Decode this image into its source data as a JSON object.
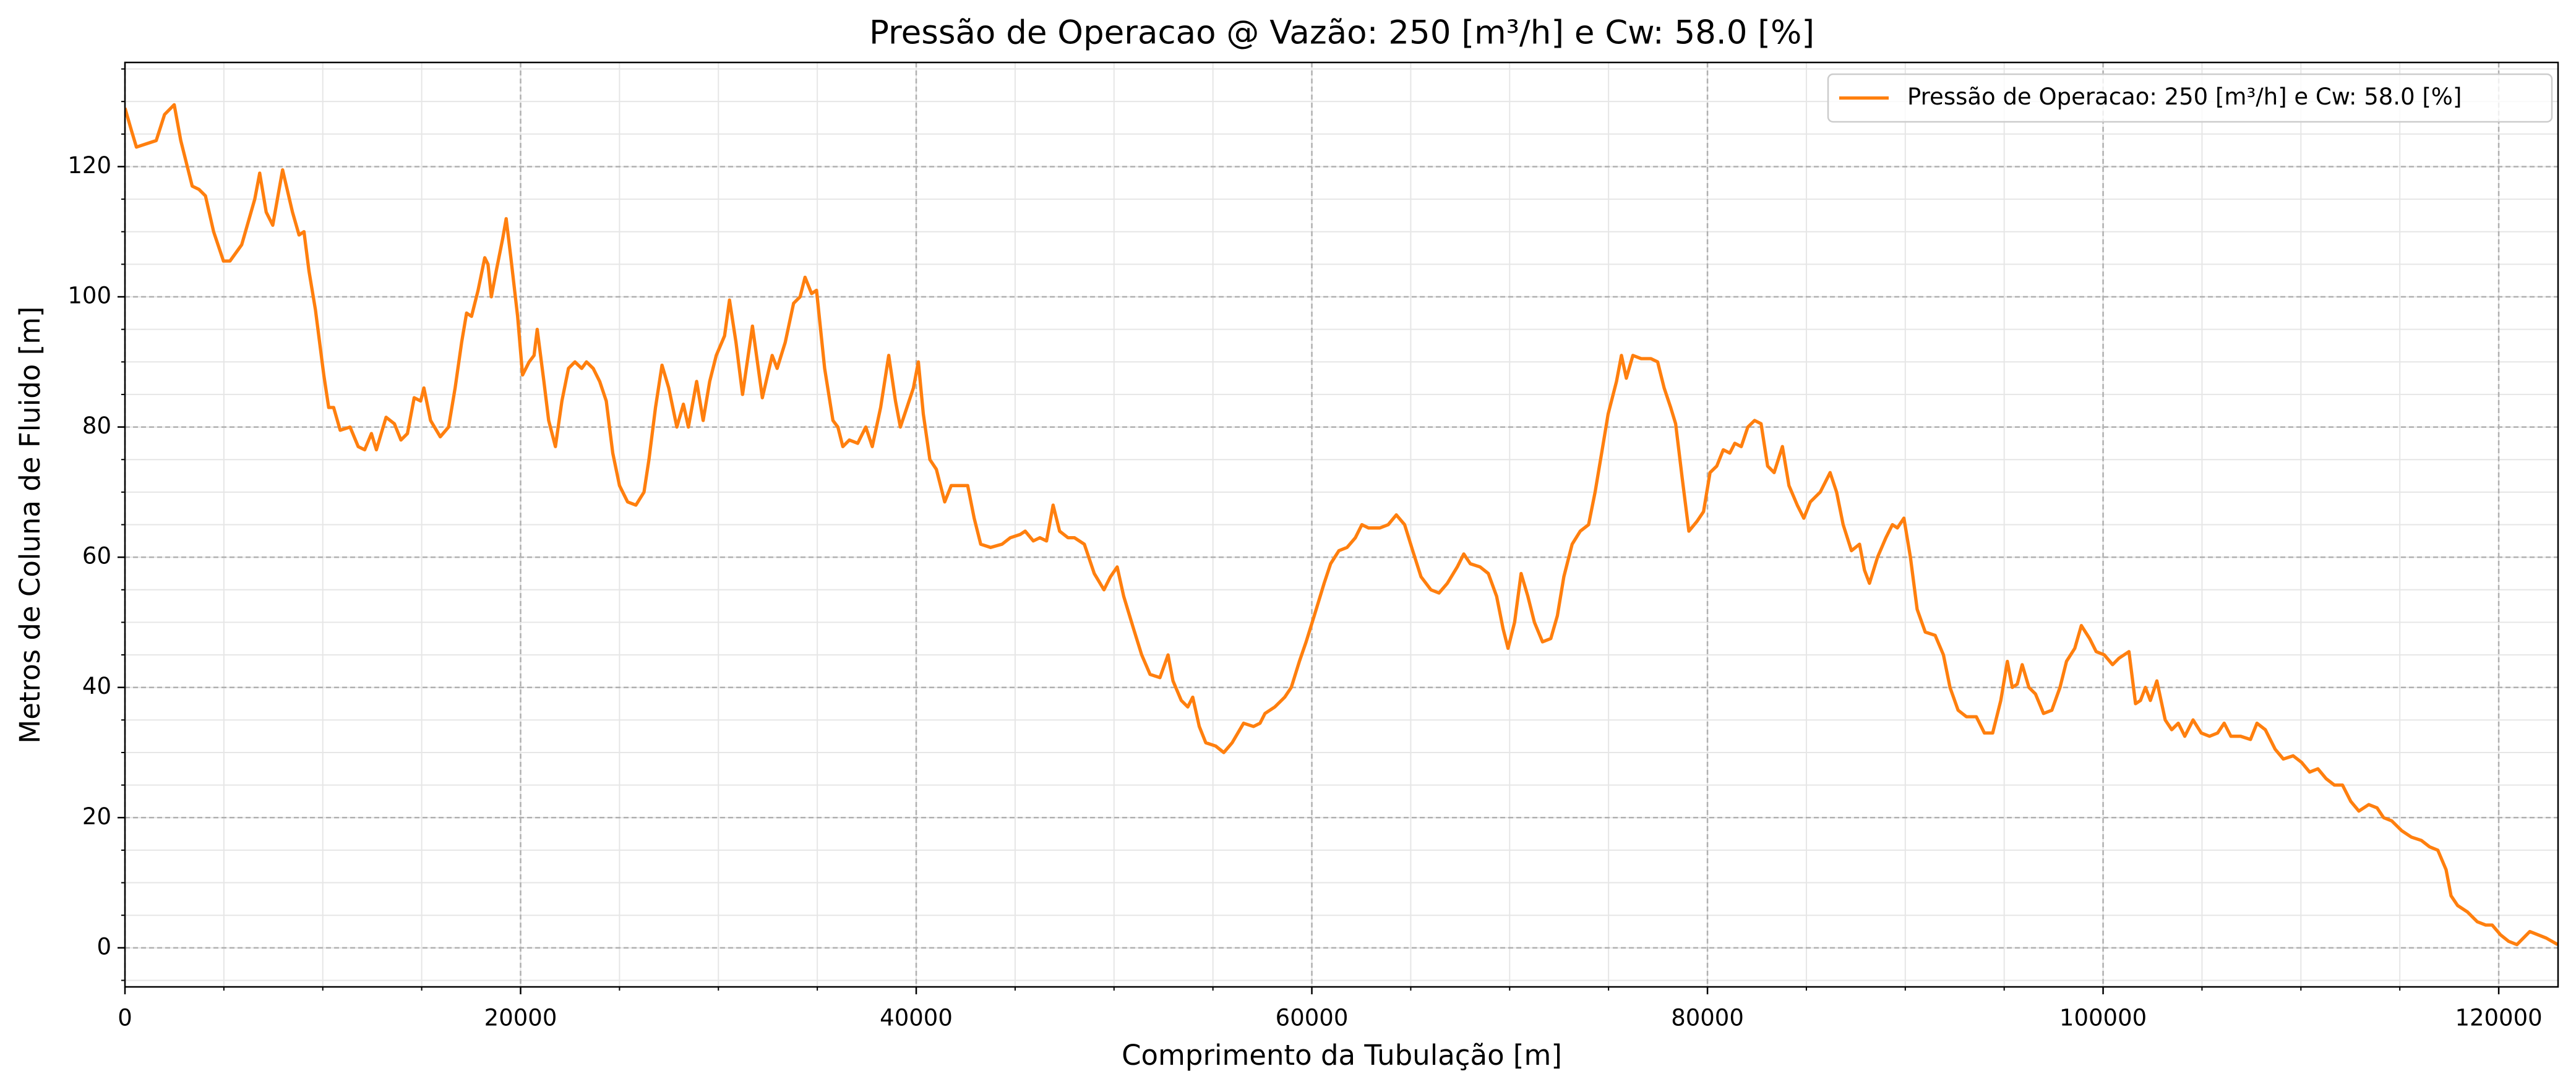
{
  "chart_data": {
    "type": "line",
    "title": "Pressão de Operacao @ Vazão: 250 [m³/h] e Cw: 58.0 [%]",
    "x_label": "Comprimento da Tubulação [m]",
    "y_label": "Metros de Coluna de Fluido [m]",
    "xlim": [
      0,
      123000
    ],
    "ylim": [
      -6,
      136
    ],
    "xticks": [
      0,
      20000,
      40000,
      60000,
      80000,
      100000,
      120000
    ],
    "yticks": [
      0,
      20,
      40,
      60,
      80,
      100,
      120
    ],
    "grid": true,
    "legend": "upper right",
    "x": [
      0,
      330,
      580,
      1580,
      2000,
      2490,
      2820,
      3400,
      3740,
      4070,
      4480,
      4980,
      5310,
      5900,
      6560,
      6810,
      7140,
      7470,
      7970,
      8470,
      8800,
      9050,
      9300,
      9630,
      10050,
      10300,
      10550,
      10880,
      11380,
      11790,
      12120,
      12460,
      12710,
      13200,
      13620,
      13950,
      14280,
      14620,
      14950,
      15110,
      15450,
      15940,
      16360,
      16690,
      17020,
      17270,
      17520,
      17850,
      18190,
      18350,
      18520,
      18770,
      19100,
      19270,
      19510,
      19850,
      20100,
      20430,
      20680,
      20840,
      21180,
      21420,
      21760,
      22090,
      22420,
      22750,
      23090,
      23330,
      23670,
      24000,
      24330,
      24660,
      25000,
      25410,
      25830,
      26240,
      26490,
      26820,
      27150,
      27490,
      27900,
      28230,
      28480,
      28900,
      29230,
      29560,
      29890,
      30310,
      30560,
      30890,
      31220,
      31720,
      32220,
      32720,
      32970,
      33380,
      33800,
      34130,
      34380,
      34710,
      34960,
      35370,
      35790,
      36040,
      36290,
      36620,
      37040,
      37450,
      37780,
      38200,
      38610,
      38950,
      39200,
      39530,
      39860,
      40110,
      40360,
      40690,
      41020,
      41440,
      41770,
      42180,
      42600,
      42930,
      43260,
      43760,
      44340,
      44760,
      45260,
      45510,
      45920,
      46250,
      46590,
      46920,
      47250,
      47670,
      48000,
      48500,
      49000,
      49490,
      49820,
      50160,
      50490,
      50990,
      51400,
      51820,
      52320,
      52730,
      52980,
      53400,
      53730,
      53980,
      54310,
      54640,
      55140,
      55550,
      55970,
      56550,
      57050,
      57380,
      57630,
      58130,
      58630,
      58960,
      59370,
      59710,
      60120,
      60620,
      60950,
      61370,
      61780,
      62200,
      62530,
      62860,
      63440,
      63860,
      64270,
      64690,
      65100,
      65520,
      66020,
      66430,
      66850,
      67350,
      67680,
      68010,
      68510,
      68920,
      69340,
      69670,
      69920,
      70250,
      70580,
      70920,
      71250,
      71660,
      72080,
      72410,
      72740,
      73160,
      73570,
      73990,
      74320,
      74650,
      74980,
      75400,
      75650,
      75900,
      76230,
      76650,
      77140,
      77480,
      77810,
      78140,
      78390,
      78730,
      79060,
      79470,
      79800,
      80130,
      80470,
      80800,
      81130,
      81380,
      81710,
      82040,
      82380,
      82710,
      83040,
      83370,
      83790,
      84120,
      84540,
      84870,
      85200,
      85700,
      86200,
      86530,
      86860,
      87280,
      87690,
      87940,
      88190,
      88600,
      89020,
      89350,
      89600,
      89930,
      90260,
      90600,
      91010,
      91510,
      91930,
      92260,
      92670,
      93090,
      93590,
      94000,
      94420,
      94830,
      95160,
      95410,
      95660,
      95910,
      96250,
      96580,
      96990,
      97410,
      97820,
      98150,
      98570,
      98900,
      99320,
      99650,
      100060,
      100480,
      100810,
      101310,
      101640,
      101890,
      102140,
      102390,
      102720,
      103140,
      103470,
      103800,
      104130,
      104550,
      104960,
      105380,
      105790,
      106120,
      106460,
      106950,
      107450,
      107780,
      108200,
      108700,
      109110,
      109610,
      110030,
      110440,
      110860,
      111270,
      111690,
      112100,
      112520,
      112930,
      113430,
      113850,
      114180,
      114590,
      115090,
      115590,
      116090,
      116510,
      116920,
      117340,
      117590,
      117920,
      118420,
      118920,
      119340,
      119670,
      120090,
      120500,
      120920,
      121570,
      122400,
      122980
    ],
    "series": [
      {
        "name": "Pressão de Operacao: 250 [m³/h] e Cw: 58.0 [%]",
        "color": "#ff7f0e",
        "values": [
          129,
          125.5,
          123,
          124,
          128,
          129.5,
          124,
          117,
          116.5,
          115.5,
          110,
          105.5,
          105.5,
          108,
          115,
          119,
          113,
          111,
          119.5,
          113,
          109.5,
          110,
          104,
          98,
          88,
          83,
          83,
          79.5,
          80,
          77,
          76.5,
          79,
          76.5,
          81.5,
          80.5,
          78,
          79,
          84.5,
          84,
          86,
          81,
          78.5,
          80,
          86,
          93,
          97.5,
          97,
          101,
          106,
          105,
          100,
          104,
          109,
          112,
          106,
          97,
          88,
          90,
          91,
          95,
          87,
          81,
          77,
          84,
          89,
          90,
          89,
          90,
          89,
          87,
          84,
          76,
          71,
          68.5,
          68,
          70,
          75,
          83,
          89.5,
          86,
          80,
          83.5,
          80,
          87,
          81,
          87,
          91,
          94,
          99.5,
          93,
          85,
          95.5,
          84.5,
          91,
          89,
          93,
          99,
          100,
          103,
          100.5,
          101,
          89,
          81,
          80,
          77,
          78,
          77.5,
          80,
          77,
          83,
          91,
          84,
          80,
          83,
          86,
          90,
          82,
          75,
          73.5,
          68.5,
          71,
          71,
          71,
          66,
          62,
          61.5,
          62,
          63,
          63.5,
          64,
          62.5,
          63,
          62.5,
          68,
          64,
          63,
          63,
          62,
          57.5,
          55,
          57,
          58.5,
          54,
          49,
          45,
          42,
          41.5,
          45,
          41,
          38,
          37,
          38.5,
          34,
          31.5,
          31,
          30,
          31.5,
          34.5,
          34,
          34.5,
          36,
          37,
          38.5,
          40,
          44,
          47,
          51,
          56,
          59,
          61,
          61.5,
          63,
          65,
          64.5,
          64.5,
          65,
          66.5,
          65,
          61,
          57,
          55,
          54.5,
          56,
          58.5,
          60.5,
          59,
          58.5,
          57.5,
          54,
          49,
          46,
          50,
          57.5,
          54,
          50,
          47,
          47.5,
          51,
          57,
          62,
          64,
          65,
          70,
          76,
          82,
          87,
          91,
          87.5,
          91,
          90.5,
          90.5,
          90,
          86,
          83,
          80.5,
          72,
          64,
          65.5,
          67,
          73,
          74,
          76.5,
          76,
          77.5,
          77,
          80,
          81,
          80.5,
          74,
          73,
          77,
          71,
          68,
          66,
          68.5,
          70,
          73,
          70,
          65,
          61,
          62,
          58,
          56,
          60,
          63,
          65,
          64.5,
          66,
          60,
          52,
          48.5,
          48,
          45,
          40,
          36.5,
          35.5,
          35.5,
          33,
          33,
          38,
          44,
          40,
          40.5,
          43.5,
          40,
          39,
          36,
          36.5,
          40,
          44,
          46,
          49.5,
          47.5,
          45.5,
          45,
          43.5,
          44.5,
          45.5,
          37.5,
          38,
          40,
          38,
          41,
          35,
          33.5,
          34.5,
          32.5,
          35,
          33,
          32.5,
          33,
          34.5,
          32.5,
          32.5,
          32,
          34.5,
          33.5,
          30.5,
          29,
          29.5,
          28.5,
          27,
          27.5,
          26,
          25,
          25,
          22.5,
          21,
          22,
          21.5,
          20,
          19.5,
          18,
          17,
          16.5,
          15.5,
          15,
          12,
          8,
          6.5,
          5.5,
          4,
          3.5,
          3.5,
          2,
          1,
          0.5,
          2.5,
          1.5,
          0.5
        ]
      }
    ]
  }
}
